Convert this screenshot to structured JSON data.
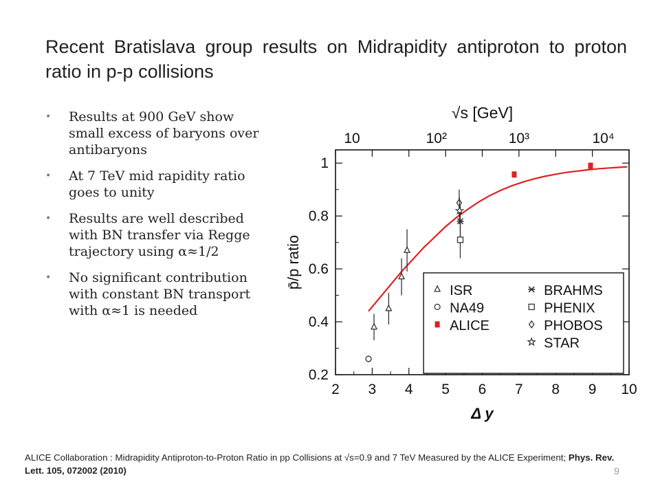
{
  "slide": {
    "title": "Recent Bratislava group results on Midrapidity antiproton to proton ratio in p-p collisions",
    "bullets": [
      "Results at 900 GeV show small excess of baryons over antibaryons",
      "At 7 TeV mid rapidity ratio goes to unity",
      "Results are well described with BN transfer via Regge trajectory using α≈1/2",
      "No significant contribution with constant BN transport with α≈1 is needed"
    ],
    "footer_text": "ALICE Collaboration : Midrapidity Antiproton-to-Proton Ratio in pp Collisions at √s=0.9 and 7 TeV Measured by the ALICE Experiment;",
    "footer_ref": "Phys. Rev. Lett. 105, 072002 (2010)",
    "page_number": "9"
  },
  "chart_data": {
    "type": "scatter",
    "xlabel": "Δ y",
    "ylabel": "p̄/p ratio",
    "top_axis_label": "√s [GeV]",
    "xlim": [
      2,
      10
    ],
    "ylim": [
      0.2,
      1.05
    ],
    "x_ticks": [
      "2",
      "3",
      "4",
      "5",
      "6",
      "7",
      "8",
      "9",
      "10"
    ],
    "y_ticks": [
      "0.2",
      "0.4",
      "0.6",
      "0.8",
      "1"
    ],
    "top_ticks": [
      {
        "label": "10",
        "x": 2.45
      },
      {
        "label": "10²",
        "x": 4.75
      },
      {
        "label": "10³",
        "x": 7.0
      },
      {
        "label": "10⁴",
        "x": 9.3
      }
    ],
    "series": [
      {
        "name": "ISR",
        "marker": "triangle",
        "color": "#333333",
        "points": [
          {
            "x": 3.05,
            "y": 0.38,
            "err": 0.05
          },
          {
            "x": 3.45,
            "y": 0.45,
            "err": 0.06
          },
          {
            "x": 3.8,
            "y": 0.57,
            "err": 0.07
          },
          {
            "x": 3.95,
            "y": 0.67,
            "err": 0.08
          }
        ]
      },
      {
        "name": "NA49",
        "marker": "circle",
        "color": "#333333",
        "points": [
          {
            "x": 2.9,
            "y": 0.26,
            "err": 0
          }
        ]
      },
      {
        "name": "ALICE",
        "marker": "square",
        "color": "#e02020",
        "points": [
          {
            "x": 6.87,
            "y": 0.957,
            "err": 0.01
          },
          {
            "x": 8.95,
            "y": 0.99,
            "err": 0.01
          }
        ]
      },
      {
        "name": "BRAHMS",
        "marker": "asterisk",
        "color": "#333333",
        "points": [
          {
            "x": 5.4,
            "y": 0.78,
            "err": 0.06
          }
        ]
      },
      {
        "name": "PHENIX",
        "marker": "open-square",
        "color": "#333333",
        "points": [
          {
            "x": 5.4,
            "y": 0.71,
            "err": 0.07
          }
        ]
      },
      {
        "name": "PHOBOS",
        "marker": "diamond",
        "color": "#333333",
        "points": [
          {
            "x": 5.37,
            "y": 0.85,
            "err": 0.05
          }
        ]
      },
      {
        "name": "STAR",
        "marker": "star",
        "color": "#333333",
        "points": [
          {
            "x": 5.38,
            "y": 0.82,
            "err": 0.05
          }
        ]
      }
    ],
    "fit_curve": {
      "color": "#e02020",
      "x": [
        2.9,
        3.2,
        3.5,
        3.8,
        4.1,
        4.4,
        4.7,
        5.0,
        5.3,
        5.6,
        5.9,
        6.2,
        6.5,
        6.8,
        7.1,
        7.4,
        7.7,
        8.0,
        8.3,
        8.6,
        8.9,
        9.2,
        9.5,
        9.95
      ],
      "y": [
        0.44,
        0.49,
        0.54,
        0.59,
        0.635,
        0.68,
        0.72,
        0.76,
        0.795,
        0.825,
        0.853,
        0.877,
        0.897,
        0.914,
        0.928,
        0.94,
        0.95,
        0.958,
        0.965,
        0.97,
        0.975,
        0.979,
        0.982,
        0.986
      ]
    },
    "legend": {
      "placement": "bottom-right",
      "columns": 2
    }
  }
}
